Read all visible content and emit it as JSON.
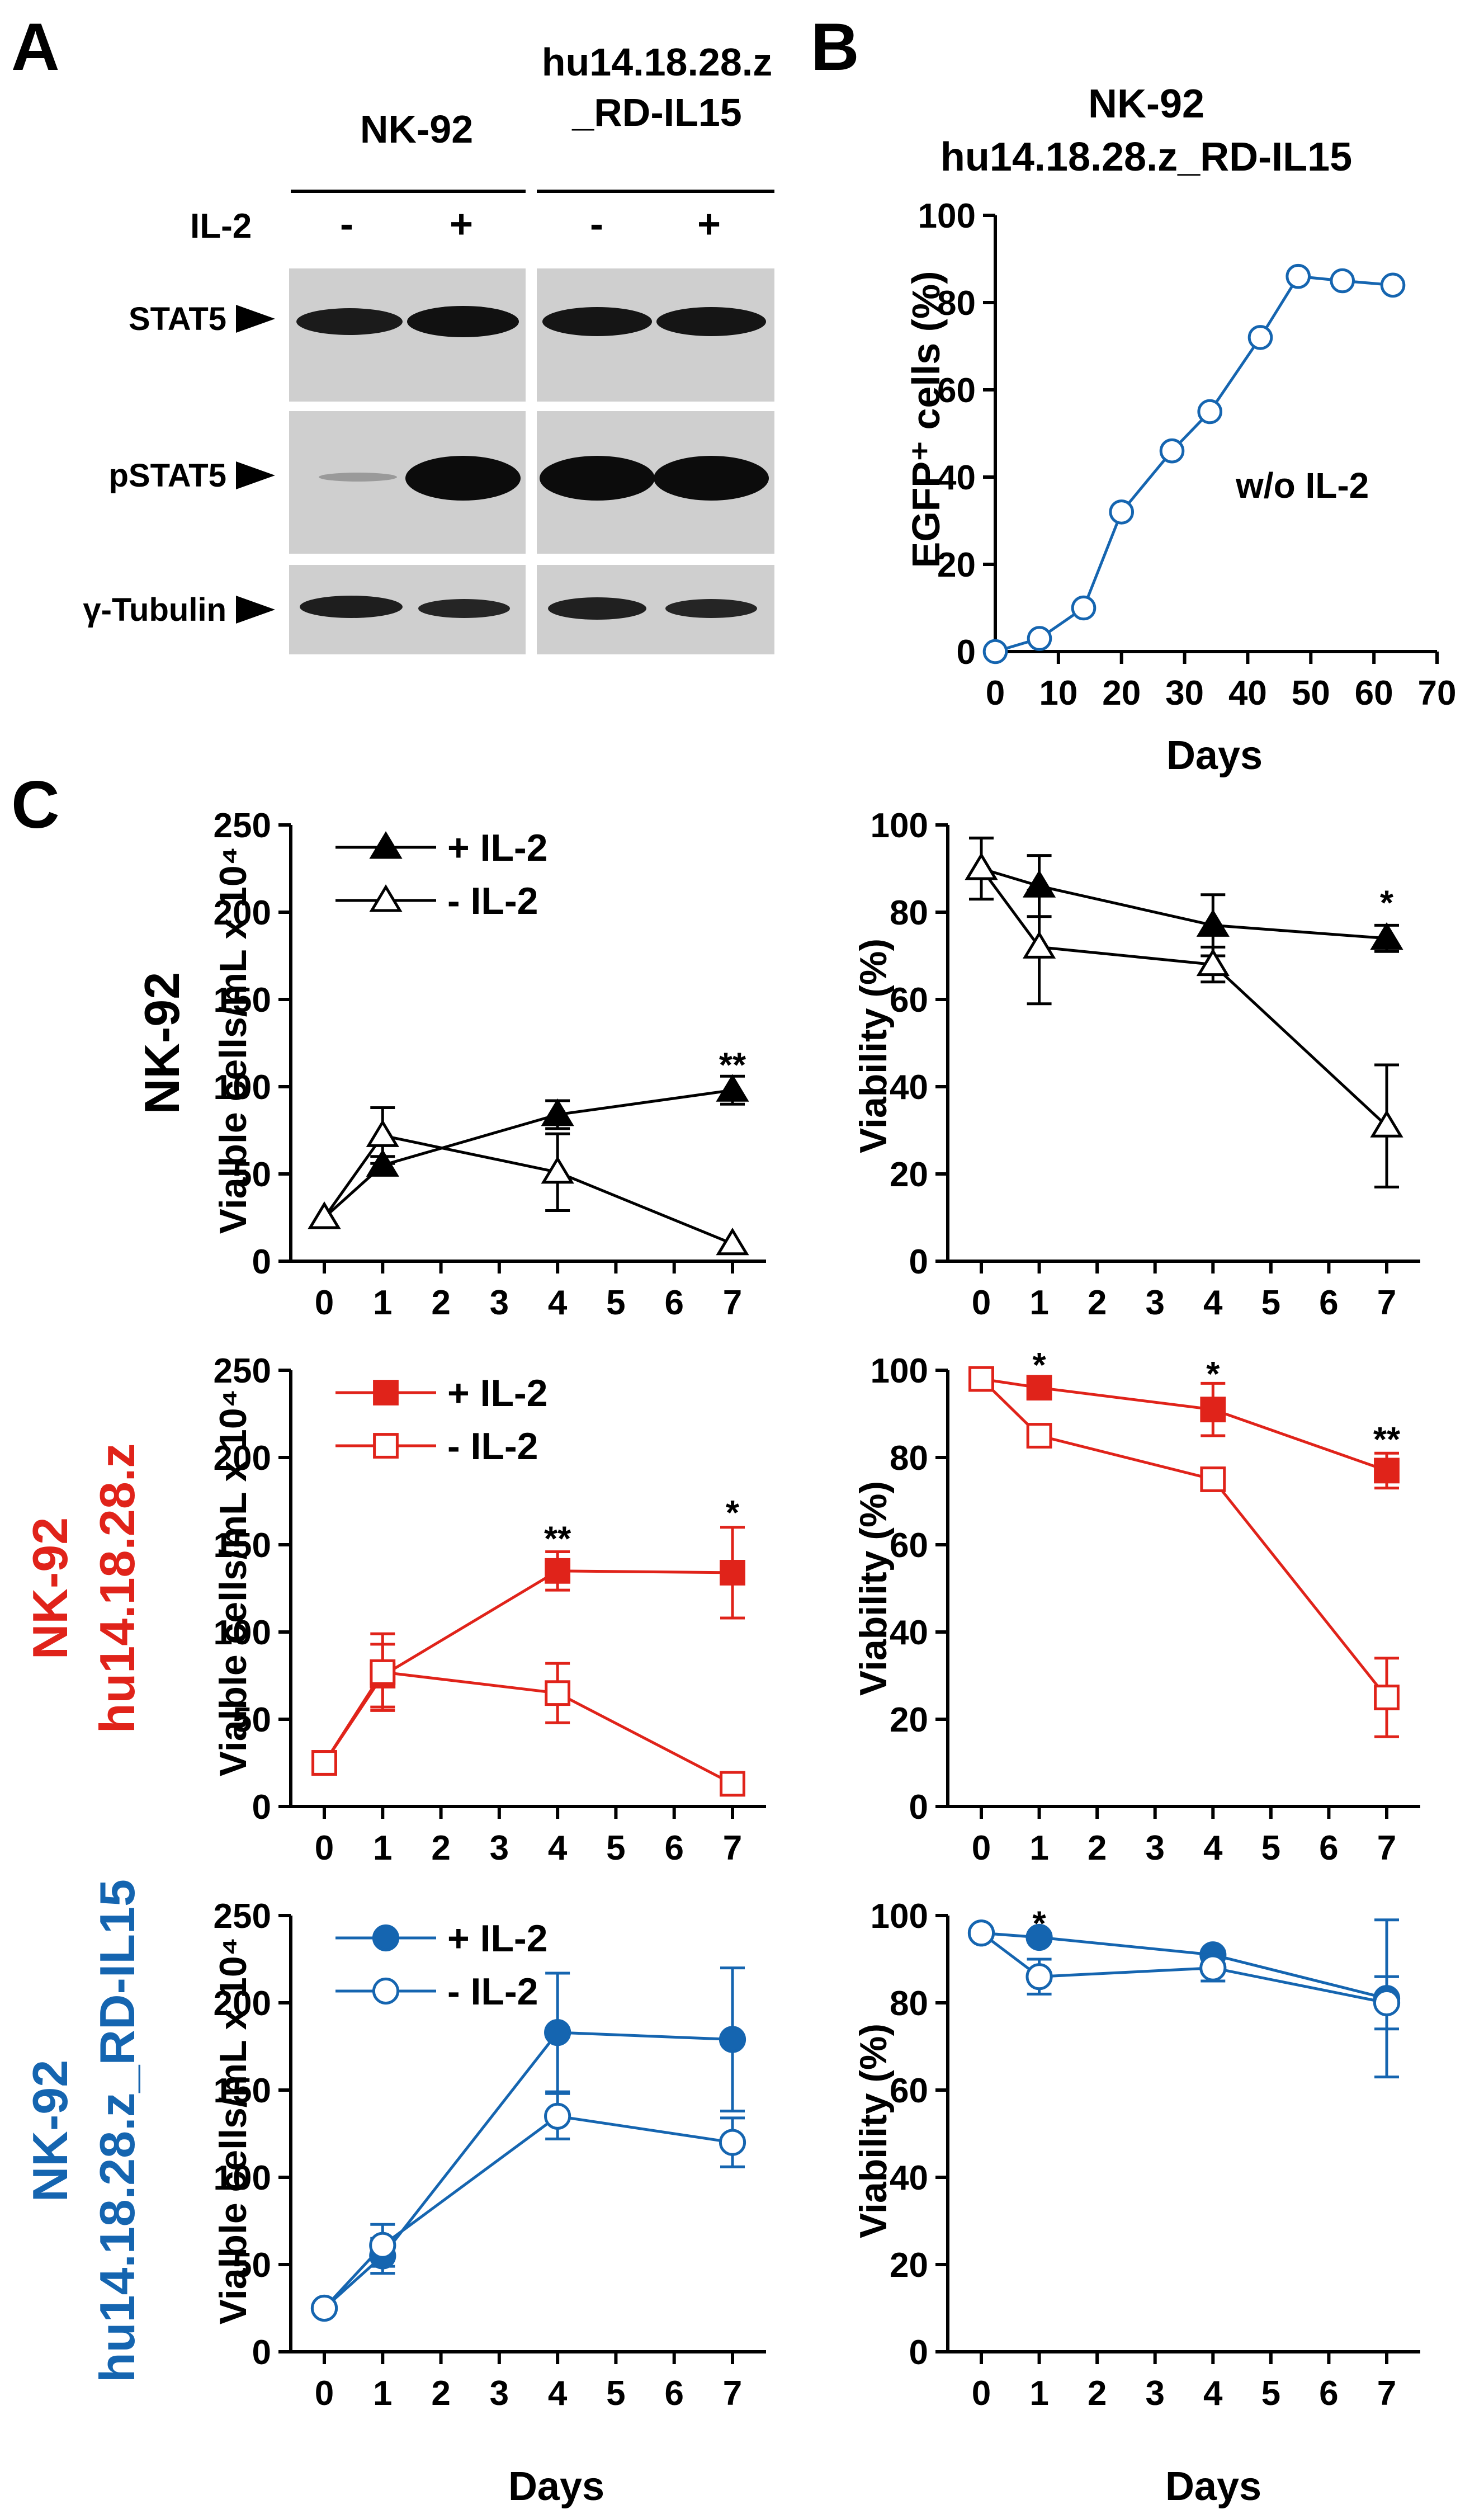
{
  "panels": {
    "a": "A",
    "b": "B",
    "c": "C"
  },
  "colors": {
    "black": "#000000",
    "red": "#e0231a",
    "blue": "#1565b0"
  },
  "blot": {
    "group1": "NK-92",
    "group2_line1": "hu14.18.28.z",
    "group2_line2": "_RD-IL15",
    "treatment": "IL-2",
    "lane_marks": [
      "-",
      "+",
      "-",
      "+"
    ],
    "rows": [
      "STAT5",
      "pSTAT5",
      "γ-Tubulin"
    ]
  },
  "rowlabels": {
    "row1": [
      "NK-92"
    ],
    "row2": [
      "NK-92",
      "hu14.18.28.z"
    ],
    "row3": [
      "NK-92",
      "hu14.18.28.z_RD-IL15"
    ]
  },
  "chart_data": [
    {
      "id": "B",
      "type": "line",
      "title": [
        "NK-92",
        "hu14.18.28.z_RD-IL15"
      ],
      "xlabel": "Days",
      "ylabel": "EGFP⁺ cells (%)",
      "annotation": "w/o IL-2",
      "xlim": [
        0,
        70
      ],
      "ylim": [
        0,
        100
      ],
      "xticks": [
        0,
        10,
        20,
        30,
        40,
        50,
        60,
        70
      ],
      "yticks": [
        0,
        20,
        40,
        60,
        80,
        100
      ],
      "grid": false,
      "series": [
        {
          "marker": "open-circle",
          "color": "#1565b0",
          "x": [
            0,
            7,
            14,
            20,
            28,
            34,
            42,
            48,
            55,
            63
          ],
          "y": [
            0,
            3,
            10,
            32,
            46,
            55,
            72,
            86,
            85,
            84
          ]
        }
      ]
    },
    {
      "id": "C-NK92-cells",
      "type": "line",
      "ylabel": "Vialble cells/mL x 10⁴",
      "ylim": [
        0,
        250
      ],
      "yticks": [
        0,
        50,
        100,
        150,
        200,
        250
      ],
      "xticks": [
        0,
        1,
        2,
        3,
        4,
        5,
        6,
        7
      ],
      "xlim": [
        0,
        7
      ],
      "legend": "top-left",
      "grid": false,
      "series": [
        {
          "name": "+ IL-2",
          "marker": "filled-triangle",
          "color": "#000000",
          "x": [
            0,
            1,
            4,
            7
          ],
          "y": [
            25,
            55,
            84,
            98
          ],
          "err": [
            0,
            5,
            8,
            8
          ]
        },
        {
          "name": "- IL-2",
          "marker": "open-triangle",
          "color": "#000000",
          "x": [
            0,
            1,
            4,
            7
          ],
          "y": [
            25,
            72,
            51,
            10
          ],
          "err": [
            0,
            16,
            22,
            0
          ]
        }
      ],
      "annotations": [
        {
          "x": 7,
          "y": 112,
          "text": "**"
        }
      ]
    },
    {
      "id": "C-NK92-viability",
      "type": "line",
      "ylabel": "Viability (%)",
      "ylim": [
        0,
        100
      ],
      "yticks": [
        0,
        20,
        40,
        60,
        80,
        100
      ],
      "xticks": [
        0,
        1,
        2,
        3,
        4,
        5,
        6,
        7
      ],
      "xlim": [
        0,
        7
      ],
      "grid": false,
      "series": [
        {
          "name": "+ IL-2",
          "marker": "filled-triangle",
          "color": "#000000",
          "x": [
            0,
            1,
            4,
            7
          ],
          "y": [
            90,
            86,
            77,
            74
          ],
          "err": [
            7,
            7,
            7,
            3
          ]
        },
        {
          "name": "- IL-2",
          "marker": "open-triangle",
          "color": "#000000",
          "x": [
            0,
            1,
            4,
            7
          ],
          "y": [
            90,
            72,
            68,
            31
          ],
          "err": [
            7,
            13,
            4,
            14
          ]
        }
      ],
      "annotations": [
        {
          "x": 7,
          "y": 82,
          "text": "*"
        }
      ]
    },
    {
      "id": "C-CAR-cells",
      "type": "line",
      "ylabel": "Vialble cells/mL x 10⁴",
      "ylim": [
        0,
        250
      ],
      "yticks": [
        0,
        50,
        100,
        150,
        200,
        250
      ],
      "xticks": [
        0,
        1,
        2,
        3,
        4,
        5,
        6,
        7
      ],
      "xlim": [
        0,
        7
      ],
      "legend": "top-left",
      "grid": false,
      "series": [
        {
          "name": "+ IL-2",
          "marker": "filled-square",
          "color": "#e0231a",
          "x": [
            0,
            1,
            4,
            7
          ],
          "y": [
            25,
            75,
            135,
            134
          ],
          "err": [
            0,
            18,
            11,
            26
          ]
        },
        {
          "name": "- IL-2",
          "marker": "open-square",
          "color": "#e0231a",
          "x": [
            0,
            1,
            4,
            7
          ],
          "y": [
            25,
            77,
            65,
            13
          ],
          "err": [
            0,
            22,
            17,
            0
          ]
        }
      ],
      "annotations": [
        {
          "x": 4,
          "y": 153,
          "text": "**"
        },
        {
          "x": 7,
          "y": 168,
          "text": "*"
        }
      ]
    },
    {
      "id": "C-CAR-viability",
      "type": "line",
      "ylabel": "Viability (%)",
      "ylim": [
        0,
        100
      ],
      "yticks": [
        0,
        20,
        40,
        60,
        80,
        100
      ],
      "xticks": [
        0,
        1,
        2,
        3,
        4,
        5,
        6,
        7
      ],
      "xlim": [
        0,
        7
      ],
      "grid": false,
      "series": [
        {
          "name": "+ IL-2",
          "marker": "filled-square",
          "color": "#e0231a",
          "x": [
            0,
            1,
            4,
            7
          ],
          "y": [
            98,
            96,
            91,
            77
          ],
          "err": [
            0,
            2,
            6,
            4
          ]
        },
        {
          "name": "- IL-2",
          "marker": "open-square",
          "color": "#e0231a",
          "x": [
            0,
            1,
            4,
            7
          ],
          "y": [
            98,
            85,
            75,
            25
          ],
          "err": [
            0,
            2,
            0,
            9
          ]
        }
      ],
      "annotations": [
        {
          "x": 1,
          "y": 101,
          "text": "*"
        },
        {
          "x": 4,
          "y": 99,
          "text": "*"
        },
        {
          "x": 7,
          "y": 84,
          "text": "**"
        }
      ]
    },
    {
      "id": "C-CARIL15-cells",
      "type": "line",
      "ylabel": "Vialble cells/mL x 10⁴",
      "xlabel": "Days",
      "ylim": [
        0,
        250
      ],
      "yticks": [
        0,
        50,
        100,
        150,
        200,
        250
      ],
      "xticks": [
        0,
        1,
        2,
        3,
        4,
        5,
        6,
        7
      ],
      "xlim": [
        0,
        7
      ],
      "legend": "top-left",
      "grid": false,
      "series": [
        {
          "name": "+ IL-2",
          "marker": "filled-circle",
          "color": "#1565b0",
          "x": [
            0,
            1,
            4,
            7
          ],
          "y": [
            25,
            55,
            183,
            179
          ],
          "err": [
            0,
            10,
            34,
            41
          ]
        },
        {
          "name": "- IL-2",
          "marker": "open-circle",
          "color": "#1565b0",
          "x": [
            0,
            1,
            4,
            7
          ],
          "y": [
            25,
            61,
            135,
            120
          ],
          "err": [
            0,
            12,
            13,
            14
          ]
        }
      ],
      "annotations": []
    },
    {
      "id": "C-CARIL15-viability",
      "type": "line",
      "ylabel": "Viability (%)",
      "xlabel": "Days",
      "ylim": [
        0,
        100
      ],
      "yticks": [
        0,
        20,
        40,
        60,
        80,
        100
      ],
      "xticks": [
        0,
        1,
        2,
        3,
        4,
        5,
        6,
        7
      ],
      "xlim": [
        0,
        7
      ],
      "grid": false,
      "series": [
        {
          "name": "+ IL-2",
          "marker": "filled-circle",
          "color": "#1565b0",
          "x": [
            0,
            1,
            4,
            7
          ],
          "y": [
            96,
            95,
            91,
            81
          ],
          "err": [
            0,
            1,
            1,
            18
          ]
        },
        {
          "name": "- IL-2",
          "marker": "open-circle",
          "color": "#1565b0",
          "x": [
            0,
            1,
            4,
            7
          ],
          "y": [
            96,
            86,
            88,
            80
          ],
          "err": [
            0,
            4,
            3,
            6
          ]
        }
      ],
      "annotations": [
        {
          "x": 1,
          "y": 98,
          "text": "*"
        }
      ]
    }
  ]
}
